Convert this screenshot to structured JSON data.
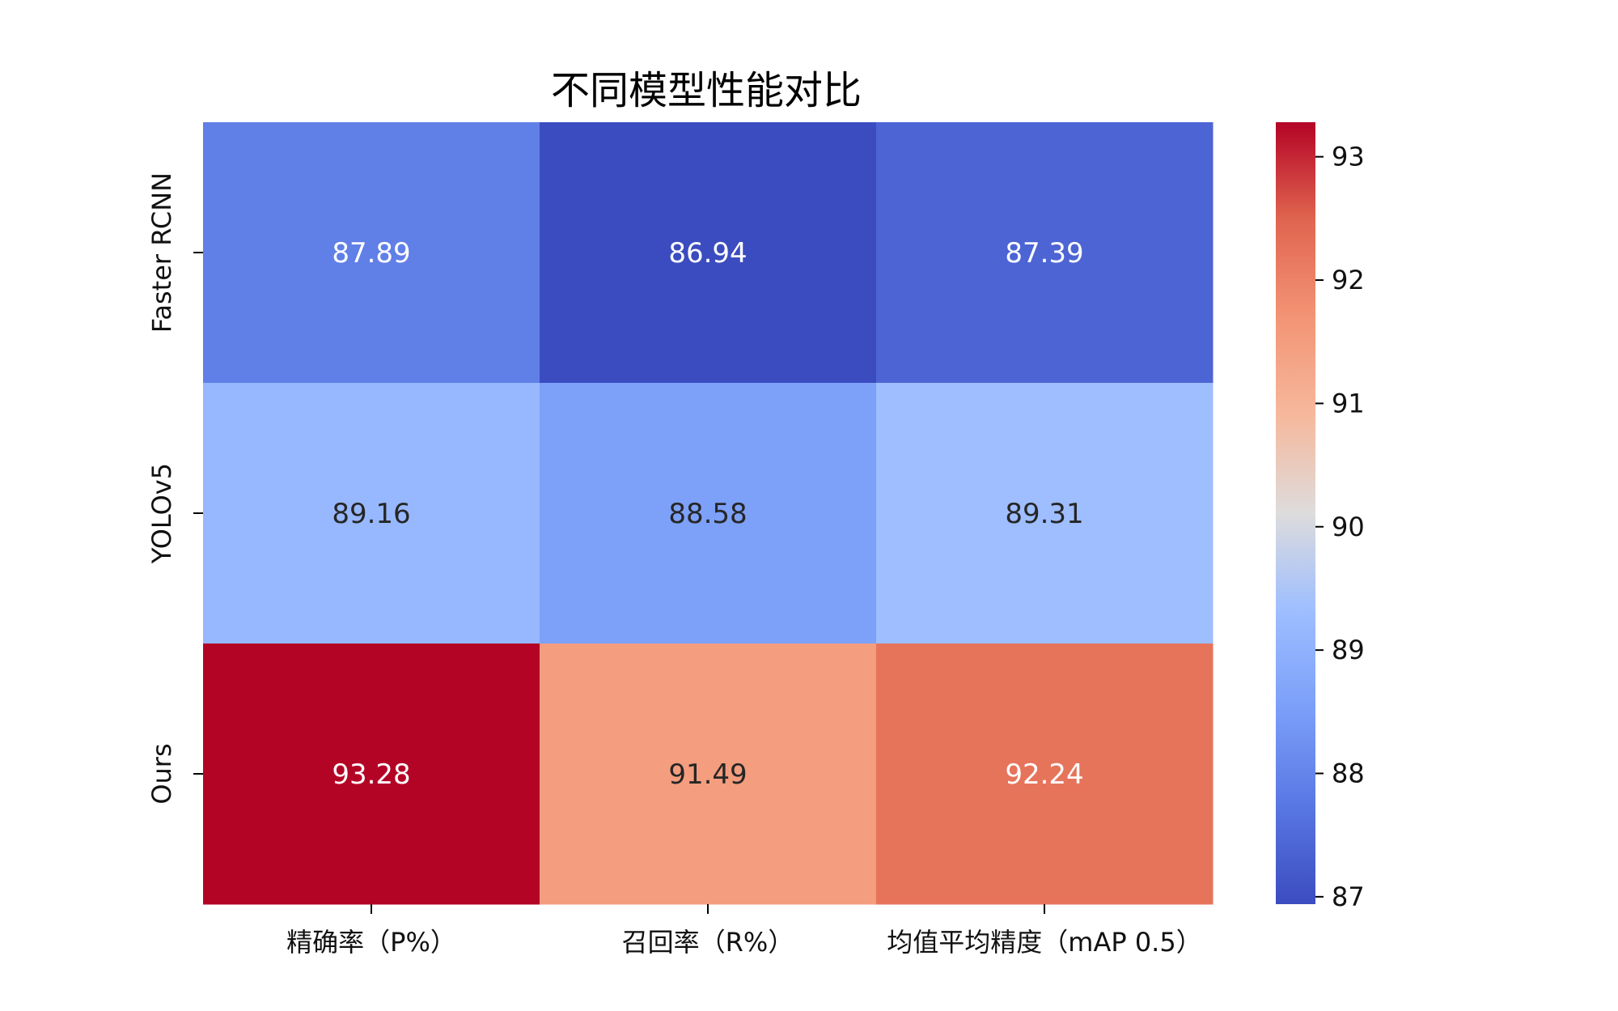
{
  "chart_data": {
    "type": "heatmap",
    "title": "不同模型性能对比",
    "x_categories": [
      "精确率（P%）",
      "召回率（R%）",
      "均值平均精度（mAP 0.5）"
    ],
    "y_categories": [
      "Faster RCNN",
      "YOLOv5",
      "Ours"
    ],
    "values": [
      [
        87.89,
        86.94,
        87.39
      ],
      [
        89.16,
        88.58,
        89.31
      ],
      [
        93.28,
        91.49,
        92.24
      ]
    ],
    "colormap": "coolwarm",
    "vmin": 86.94,
    "vmax": 93.28,
    "colorbar_ticks": [
      "87",
      "88",
      "89",
      "90",
      "91",
      "92",
      "93"
    ],
    "xlabel": "",
    "ylabel": ""
  }
}
